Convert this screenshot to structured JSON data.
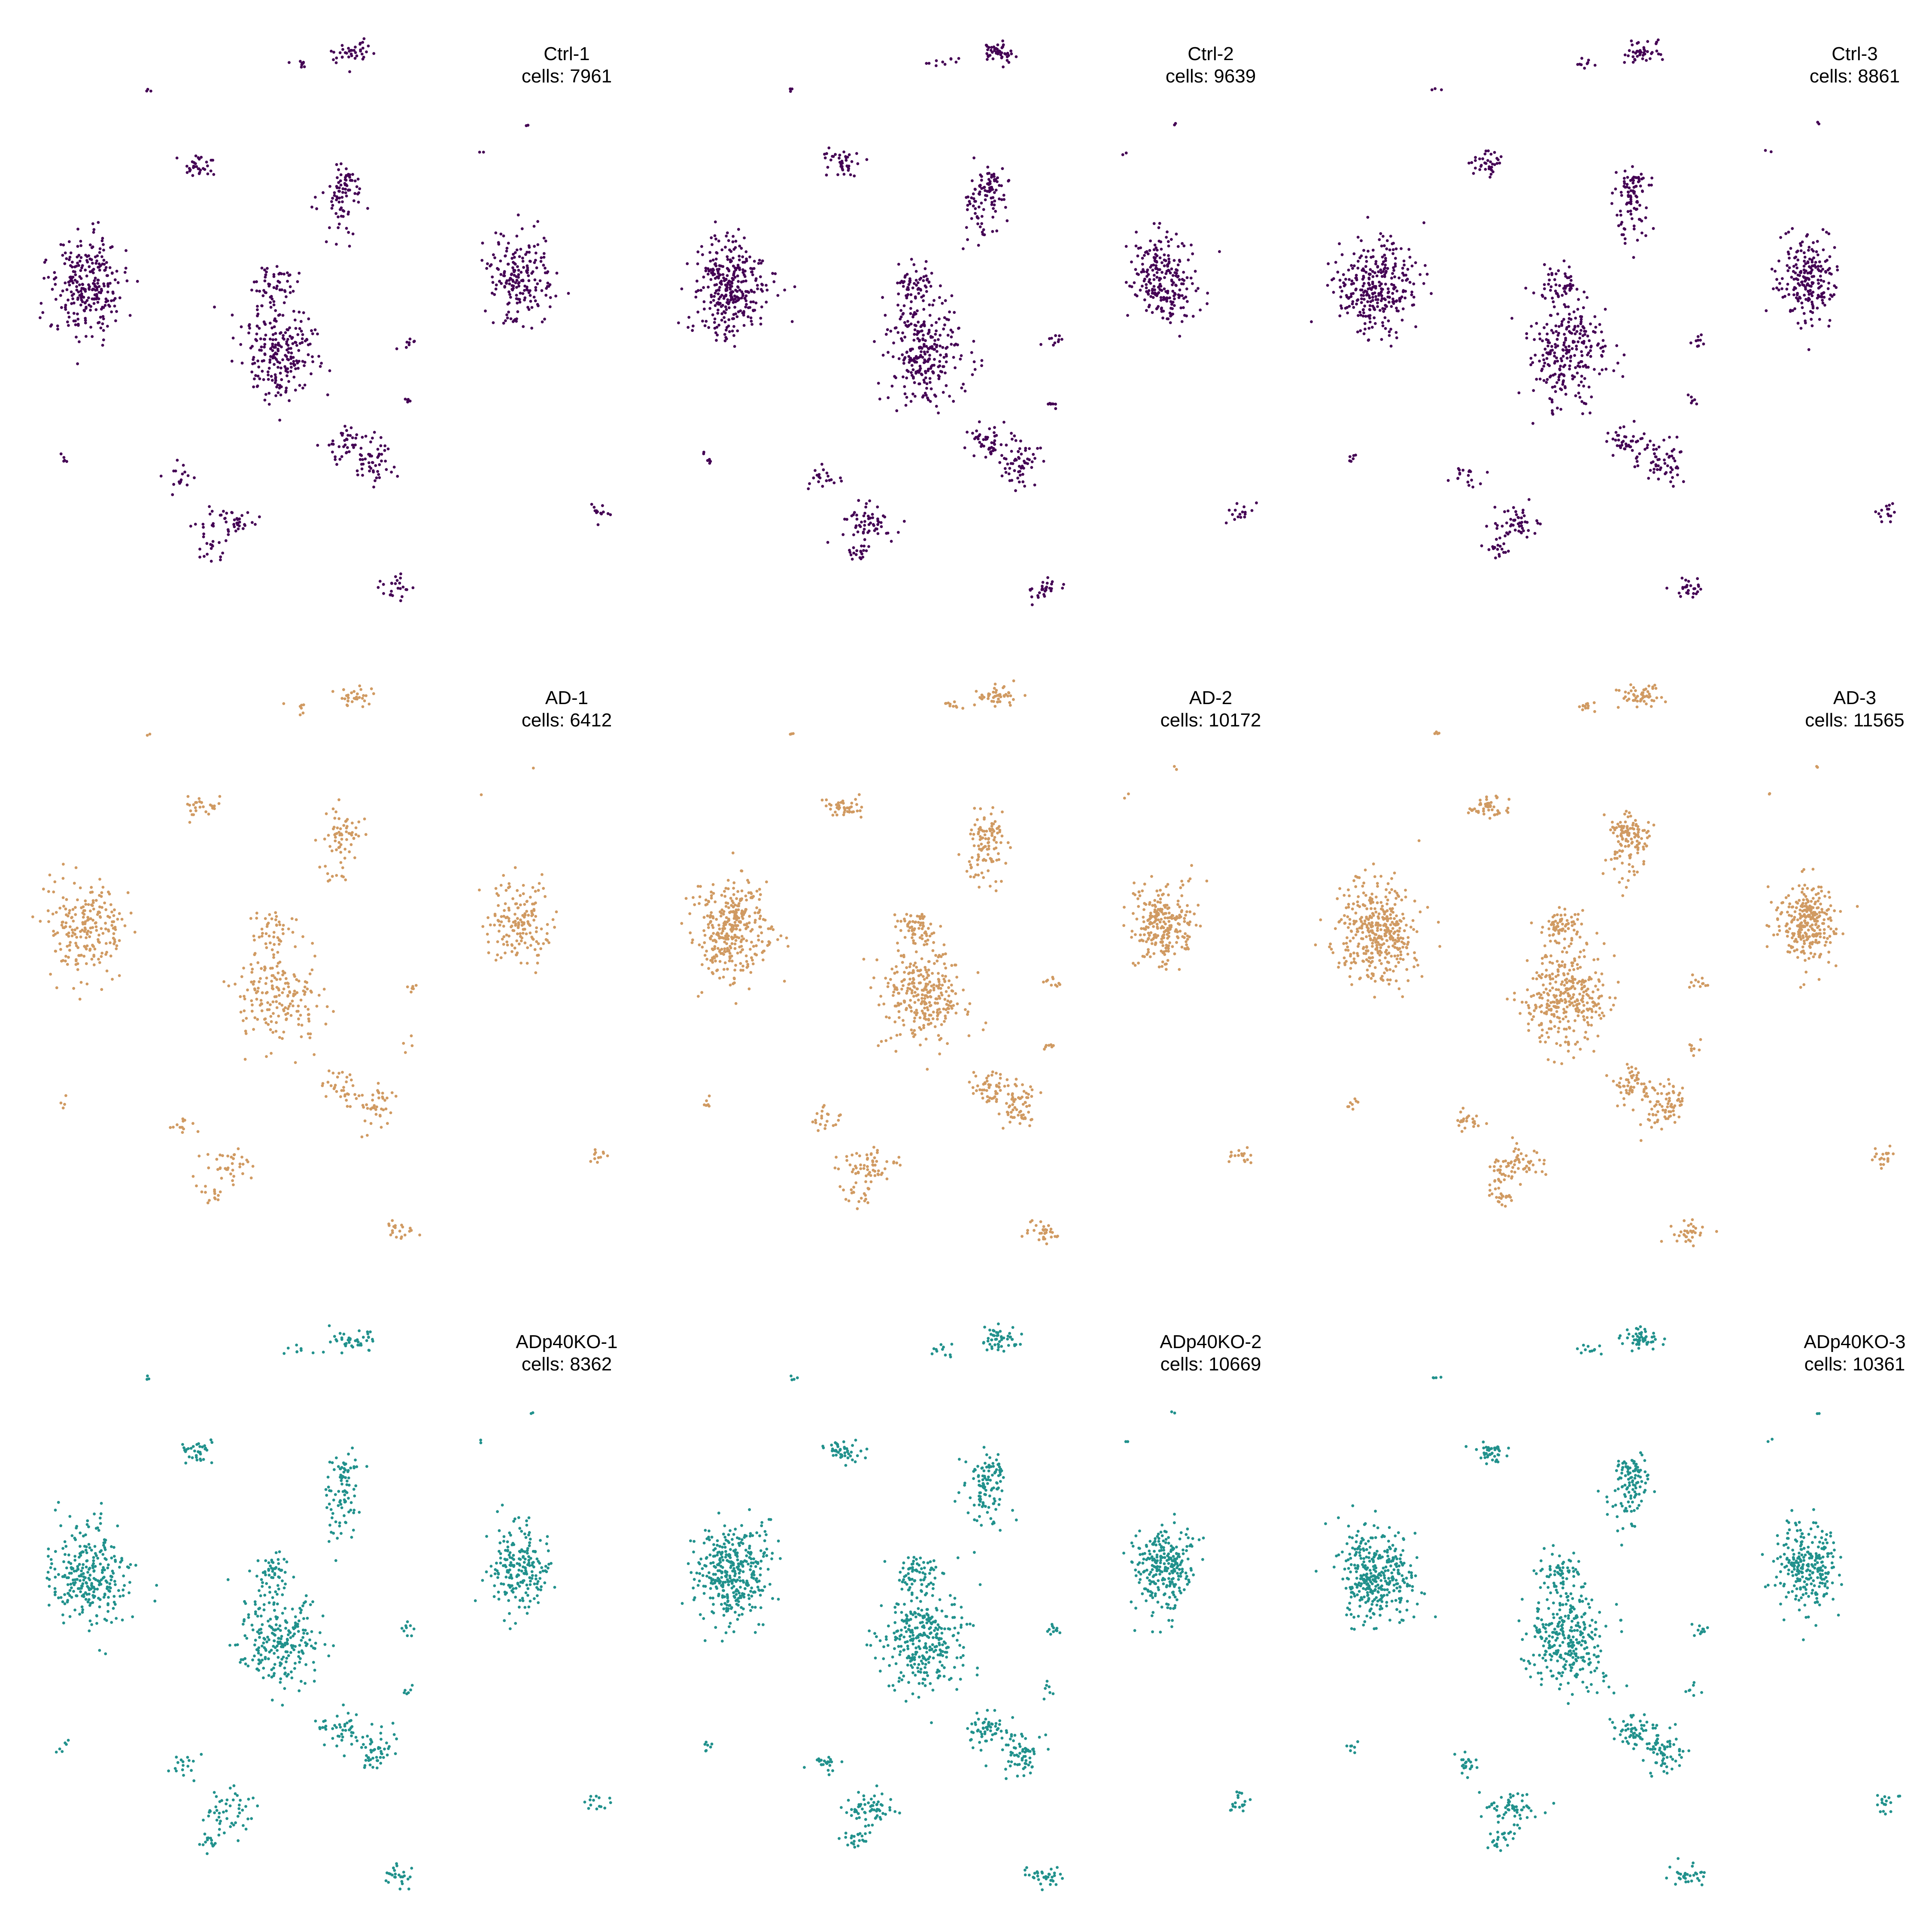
{
  "chart_data": {
    "type": "scatter",
    "layout": "3x3 small multiples (UMAP per sample)",
    "axes_visible": false,
    "grid": false,
    "panels": [
      {
        "sample": "Ctrl-1",
        "cells_label": "cells: 7961",
        "cells": 7961,
        "color": "#440154"
      },
      {
        "sample": "Ctrl-2",
        "cells_label": "cells: 9639",
        "cells": 9639,
        "color": "#440154"
      },
      {
        "sample": "Ctrl-3",
        "cells_label": "cells: 8861",
        "cells": 8861,
        "color": "#440154"
      },
      {
        "sample": "AD-1",
        "cells_label": "cells: 6412",
        "cells": 6412,
        "color": "#D09A62"
      },
      {
        "sample": "AD-2",
        "cells_label": "cells: 10172",
        "cells": 10172,
        "color": "#D09A62"
      },
      {
        "sample": "AD-3",
        "cells_label": "cells: 11565",
        "cells": 11565,
        "color": "#D09A62"
      },
      {
        "sample": "ADp40KO-1",
        "cells_label": "cells: 8362",
        "cells": 8362,
        "color": "#21918C"
      },
      {
        "sample": "ADp40KO-2",
        "cells_label": "cells: 10669",
        "cells": 10669,
        "color": "#21918C"
      },
      {
        "sample": "ADp40KO-3",
        "cells_label": "cells: 10361",
        "cells": 10361,
        "color": "#21918C"
      }
    ]
  }
}
